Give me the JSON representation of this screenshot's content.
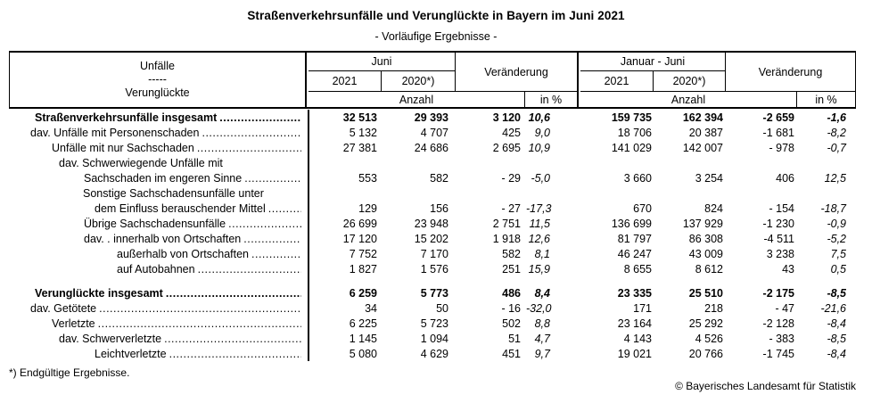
{
  "title": "Straßenverkehrsunfälle und Verunglückte in Bayern im Juni 2021",
  "subtitle": "- Vorläufige Ergebnisse -",
  "header": {
    "stub_line1": "Unfälle",
    "stub_line2": "-----",
    "stub_line3": "Verunglückte",
    "month_group": "Juni",
    "month_col_2021": "2021",
    "month_col_2020": "2020*)",
    "change1": "Veränderung",
    "period_group": "Januar - Juni",
    "period_col_2021": "2021",
    "period_col_2020": "2020*)",
    "change2": "Veränderung",
    "anzahl1": "Anzahl",
    "in_pct1": "in %",
    "anzahl2": "Anzahl",
    "in_pct2": "in %"
  },
  "columns": [
    "Juni 2021",
    "Juni 2020*)",
    "Veränderung Anzahl",
    "Veränderung in %",
    "Januar-Juni 2021",
    "Januar-Juni 2020*)",
    "Veränderung Anzahl",
    "Veränderung in %"
  ],
  "rows": [
    {
      "label": "Straßenverkehrsunfälle insgesamt",
      "indent": 28,
      "bold": true,
      "leaders": true,
      "gap": false,
      "values": [
        "32 513",
        "29 393",
        "3 120",
        "10,6",
        "159 735",
        "162 394",
        "-2 659",
        "-1,6"
      ]
    },
    {
      "label": "dav. Unfälle mit Personenschaden",
      "indent": 23,
      "bold": false,
      "leaders": true,
      "gap": false,
      "values": [
        "5 132",
        "4 707",
        "425",
        "9,0",
        "18 706",
        "20 387",
        "-1 681",
        "-8,2"
      ]
    },
    {
      "label": "Unfälle mit nur Sachschaden",
      "indent": 47,
      "bold": false,
      "leaders": true,
      "gap": false,
      "values": [
        "27 381",
        "24 686",
        "2 695",
        "10,9",
        "141 029",
        "142 007",
        "- 978",
        "-0,7"
      ]
    },
    {
      "label": "dav. Schwerwiegende Unfälle mit",
      "indent": 55,
      "bold": false,
      "leaders": false,
      "gap": false,
      "values": null
    },
    {
      "label": "Sachschaden im engeren Sinne",
      "indent": 83,
      "bold": false,
      "leaders": true,
      "gap": false,
      "values": [
        "553",
        "582",
        "- 29",
        "-5,0",
        "3 660",
        "3 254",
        "406",
        "12,5"
      ]
    },
    {
      "label": "Sonstige Sachschadensunfälle unter",
      "indent": 82,
      "bold": false,
      "leaders": false,
      "gap": false,
      "values": null
    },
    {
      "label": "dem Einfluss berauschender Mittel",
      "indent": 95,
      "bold": false,
      "leaders": true,
      "gap": false,
      "values": [
        "129",
        "156",
        "- 27",
        "-17,3",
        "670",
        "824",
        "- 154",
        "-18,7"
      ]
    },
    {
      "label": "Übrige Sachschadensunfälle",
      "indent": 83,
      "bold": false,
      "leaders": true,
      "gap": false,
      "values": [
        "26 699",
        "23 948",
        "2 751",
        "11,5",
        "136 699",
        "137 929",
        "-1 230",
        "-0,9"
      ]
    },
    {
      "label": "dav. . innerhalb von Ortschaften",
      "indent": 83,
      "bold": false,
      "leaders": true,
      "gap": false,
      "values": [
        "17 120",
        "15 202",
        "1 918",
        "12,6",
        "81 797",
        "86 308",
        "-4 511",
        "-5,2"
      ]
    },
    {
      "label": "außerhalb von Ortschaften",
      "indent": 120,
      "bold": false,
      "leaders": true,
      "gap": false,
      "values": [
        "7 752",
        "7 170",
        "582",
        "8,1",
        "46 247",
        "43 009",
        "3 238",
        "7,5"
      ]
    },
    {
      "label": "auf Autobahnen",
      "indent": 120,
      "bold": false,
      "leaders": true,
      "gap": false,
      "values": [
        "1 827",
        "1 576",
        "251",
        "15,9",
        "8 655",
        "8 612",
        "43",
        "0,5"
      ]
    },
    {
      "label": "Verunglückte insgesamt",
      "indent": 28,
      "bold": true,
      "leaders": true,
      "gap": true,
      "values": [
        "6 259",
        "5 773",
        "486",
        "8,4",
        "23 335",
        "25 510",
        "-2 175",
        "-8,5"
      ]
    },
    {
      "label": "dav. Getötete",
      "indent": 23,
      "bold": false,
      "leaders": true,
      "gap": false,
      "values": [
        "34",
        "50",
        "- 16",
        "-32,0",
        "171",
        "218",
        "- 47",
        "-21,6"
      ]
    },
    {
      "label": "Verletzte",
      "indent": 47,
      "bold": false,
      "leaders": true,
      "gap": false,
      "values": [
        "6 225",
        "5 723",
        "502",
        "8,8",
        "23 164",
        "25 292",
        "-2 128",
        "-8,4"
      ]
    },
    {
      "label": "dav. Schwerverletzte",
      "indent": 55,
      "bold": false,
      "leaders": true,
      "gap": false,
      "values": [
        "1 145",
        "1 094",
        "51",
        "4,7",
        "4 143",
        "4 526",
        "- 383",
        "-8,5"
      ]
    },
    {
      "label": "Leichtverletzte",
      "indent": 95,
      "bold": false,
      "leaders": true,
      "gap": false,
      "values": [
        "5 080",
        "4 629",
        "451",
        "9,7",
        "19 021",
        "20 766",
        "-1 745",
        "-8,4"
      ]
    }
  ],
  "footnote": "*) Endgültige Ergebnisse.",
  "copyright": "© Bayerisches Landesamt für Statistik"
}
